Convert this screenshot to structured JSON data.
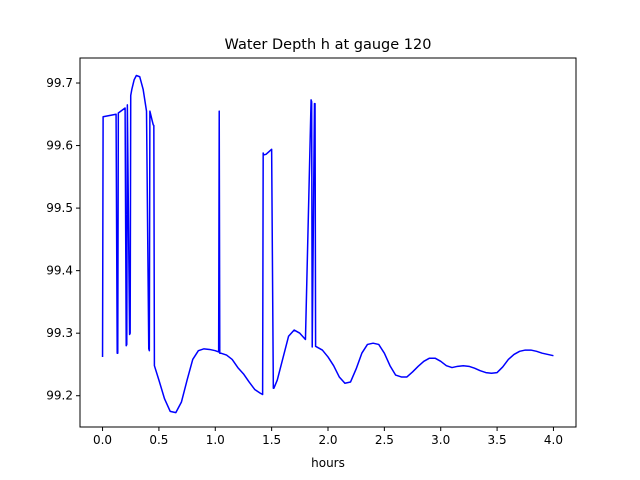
{
  "chart_data": {
    "type": "line",
    "title": "Water Depth h at gauge 120",
    "xlabel": "hours",
    "ylabel": "",
    "xlim": [
      -0.2,
      4.2
    ],
    "ylim": [
      99.15,
      99.74
    ],
    "xticks": [
      0.0,
      0.5,
      1.0,
      1.5,
      2.0,
      2.5,
      3.0,
      3.5,
      4.0
    ],
    "xtick_labels": [
      "0.0",
      "0.5",
      "1.0",
      "1.5",
      "2.0",
      "2.5",
      "3.0",
      "3.5",
      "4.0"
    ],
    "yticks": [
      99.2,
      99.3,
      99.4,
      99.5,
      99.6,
      99.7
    ],
    "ytick_labels": [
      "99.2",
      "99.3",
      "99.4",
      "99.5",
      "99.6",
      "99.7"
    ],
    "grid": false,
    "series": [
      {
        "color": "#0000ff",
        "x": [
          0.0,
          0.005,
          0.12,
          0.13,
          0.135,
          0.14,
          0.2,
          0.21,
          0.215,
          0.22,
          0.24,
          0.245,
          0.25,
          0.26,
          0.28,
          0.3,
          0.33,
          0.36,
          0.39,
          0.41,
          0.415,
          0.42,
          0.44,
          0.45,
          0.455,
          0.46,
          0.5,
          0.55,
          0.6,
          0.65,
          0.7,
          0.75,
          0.8,
          0.85,
          0.9,
          0.95,
          1.0,
          1.03,
          1.035,
          1.04,
          1.05,
          1.1,
          1.15,
          1.2,
          1.25,
          1.3,
          1.35,
          1.4,
          1.42,
          1.425,
          1.43,
          1.45,
          1.5,
          1.515,
          1.52,
          1.55,
          1.6,
          1.65,
          1.7,
          1.75,
          1.8,
          1.85,
          1.855,
          1.86,
          1.88,
          1.885,
          1.89,
          1.95,
          2.0,
          2.05,
          2.1,
          2.15,
          2.2,
          2.25,
          2.3,
          2.35,
          2.4,
          2.45,
          2.5,
          2.55,
          2.6,
          2.65,
          2.7,
          2.75,
          2.8,
          2.85,
          2.9,
          2.95,
          3.0,
          3.05,
          3.1,
          3.15,
          3.2,
          3.25,
          3.3,
          3.35,
          3.4,
          3.45,
          3.5,
          3.55,
          3.6,
          3.65,
          3.7,
          3.75,
          3.8,
          3.85,
          3.9,
          3.95,
          4.0
        ],
        "y": [
          99.262,
          99.646,
          99.65,
          99.268,
          99.268,
          99.652,
          99.66,
          99.28,
          99.282,
          99.665,
          99.298,
          99.3,
          99.68,
          99.69,
          99.705,
          99.712,
          99.71,
          99.69,
          99.655,
          99.275,
          99.272,
          99.655,
          99.64,
          99.633,
          99.632,
          99.248,
          99.225,
          99.195,
          99.175,
          99.173,
          99.19,
          99.225,
          99.258,
          99.272,
          99.275,
          99.274,
          99.272,
          99.27,
          99.655,
          99.268,
          99.268,
          99.265,
          99.258,
          99.245,
          99.235,
          99.222,
          99.21,
          99.204,
          99.202,
          99.588,
          99.585,
          99.586,
          99.594,
          99.212,
          99.212,
          99.225,
          99.26,
          99.295,
          99.305,
          99.3,
          99.29,
          99.673,
          99.67,
          99.278,
          99.667,
          99.667,
          99.279,
          99.273,
          99.262,
          99.248,
          99.23,
          99.22,
          99.222,
          99.243,
          99.268,
          99.282,
          99.284,
          99.282,
          99.268,
          99.248,
          99.233,
          99.23,
          99.23,
          99.238,
          99.247,
          99.255,
          99.26,
          99.26,
          99.255,
          99.248,
          99.245,
          99.247,
          99.248,
          99.247,
          99.244,
          99.24,
          99.237,
          99.236,
          99.237,
          99.246,
          99.258,
          99.266,
          99.271,
          99.273,
          99.273,
          99.271,
          99.268,
          99.266,
          99.264
        ]
      }
    ]
  }
}
